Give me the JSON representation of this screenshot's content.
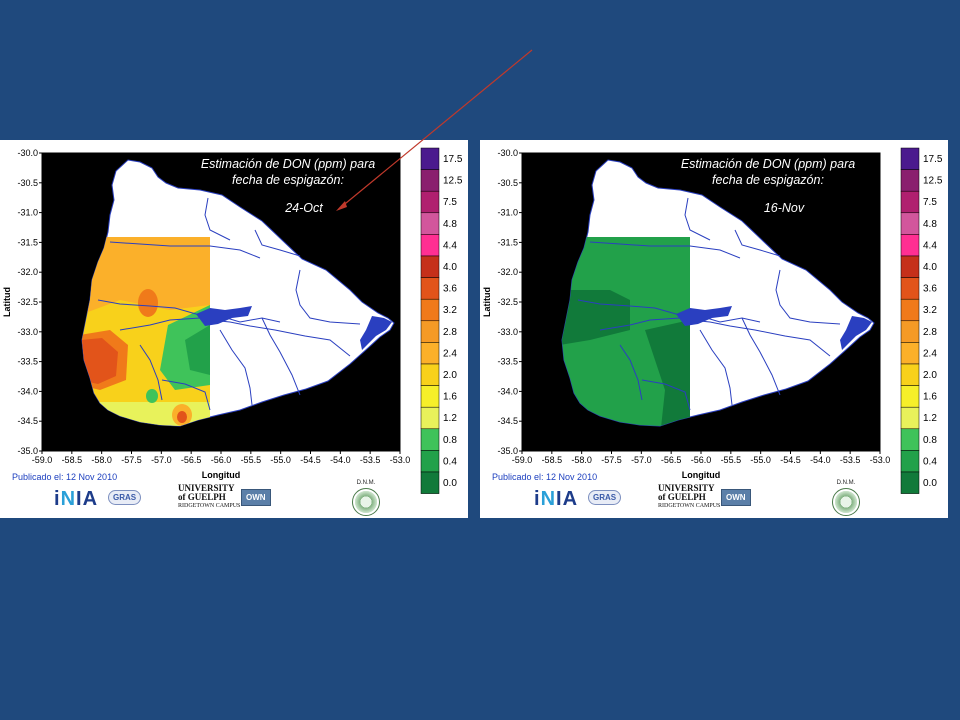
{
  "colors": {
    "background": "#1f497d",
    "arrow": "#c0392b"
  },
  "shared": {
    "x_axis_label": "Longitud",
    "y_axis_label": "Latitud",
    "x_ticks": [
      "-59.0",
      "-58.5",
      "-58.0",
      "-57.5",
      "-57.0",
      "-56.5",
      "-56.0",
      "-55.5",
      "-55.0",
      "-54.5",
      "-54.0",
      "-53.5",
      "-53.0"
    ],
    "y_ticks": [
      "-30.0",
      "-30.5",
      "-31.0",
      "-31.5",
      "-32.0",
      "-32.5",
      "-33.0",
      "-33.5",
      "-34.0",
      "-34.5",
      "-35.0"
    ],
    "legend_values": [
      "17.5",
      "12.5",
      "7.5",
      "4.8",
      "4.4",
      "4.0",
      "3.6",
      "3.2",
      "2.8",
      "2.4",
      "2.0",
      "1.6",
      "1.2",
      "0.8",
      "0.4",
      "0.0"
    ],
    "legend_colors": [
      "#4b1a8e",
      "#8a1f6e",
      "#b0206f",
      "#d2569c",
      "#ff2f92",
      "#c5301a",
      "#e2541a",
      "#f07a1a",
      "#f59a25",
      "#fbb02a",
      "#f8d11b",
      "#f6ef2a",
      "#e8f25b",
      "#3fc35a",
      "#22a14a",
      "#117a3a"
    ],
    "published": "Publicado el: 12 Nov 2010",
    "logos": {
      "inia": "INIA",
      "gras": "GRAS",
      "guelph_line1": "UNIVERSITY",
      "guelph_line2": "of GUELPH",
      "guelph_campus": "RIDGETOWN CAMPUS",
      "own": "OWN",
      "dnm": "D.N.M."
    }
  },
  "maps": [
    {
      "title_line1": "Estimación de DON (ppm) para",
      "title_line2": "fecha de espigazón:",
      "date": "24-Oct"
    },
    {
      "title_line1": "Estimación de DON (ppm) para",
      "title_line2": "fecha de espigazón:",
      "date": "16-Nov"
    }
  ]
}
